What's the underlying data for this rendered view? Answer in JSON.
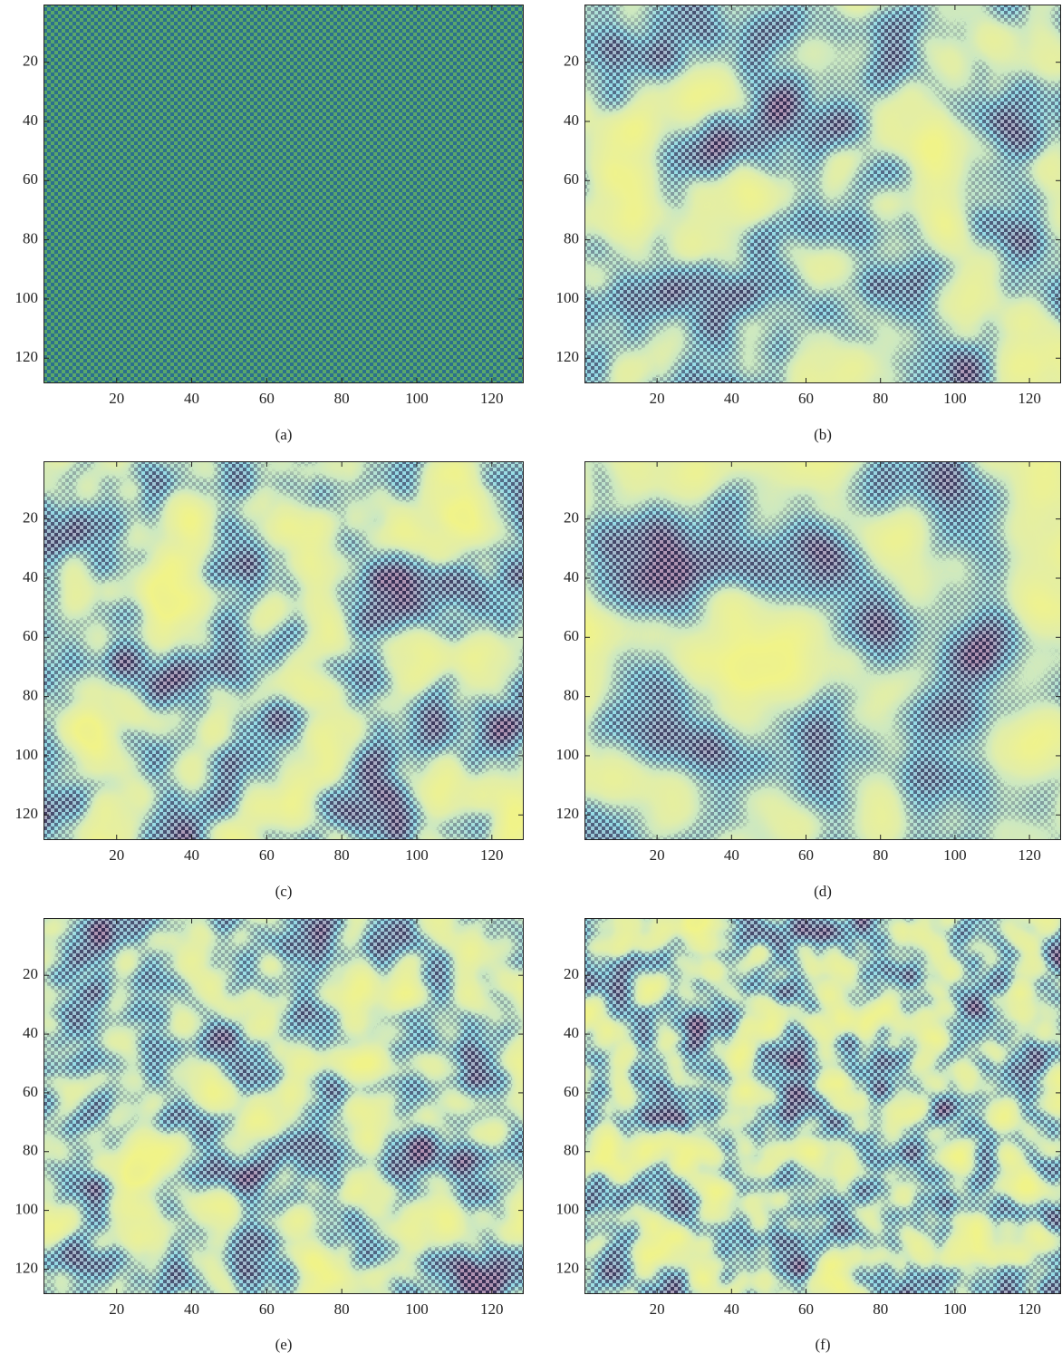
{
  "chart_data": [
    {
      "type": "heatmap",
      "caption": "(a)",
      "xlim": [
        0.5,
        128.5
      ],
      "ylim": [
        128.5,
        0.5
      ],
      "xticks": [
        20,
        40,
        60,
        80,
        100,
        120
      ],
      "yticks": [
        20,
        40,
        60,
        80,
        100,
        120
      ]
    },
    {
      "type": "heatmap",
      "caption": "(b)",
      "xlim": [
        0.5,
        128.5
      ],
      "ylim": [
        128.5,
        0.5
      ],
      "xticks": [
        20,
        40,
        60,
        80,
        100,
        120
      ],
      "yticks": [
        20,
        40,
        60,
        80,
        100,
        120
      ]
    },
    {
      "type": "heatmap",
      "caption": "(c)",
      "xlim": [
        0.5,
        128.5
      ],
      "ylim": [
        128.5,
        0.5
      ],
      "xticks": [
        20,
        40,
        60,
        80,
        100,
        120
      ],
      "yticks": [
        20,
        40,
        60,
        80,
        100,
        120
      ]
    },
    {
      "type": "heatmap",
      "caption": "(d)",
      "xlim": [
        0.5,
        128.5
      ],
      "ylim": [
        128.5,
        0.5
      ],
      "xticks": [
        20,
        40,
        60,
        80,
        100,
        120
      ],
      "yticks": [
        20,
        40,
        60,
        80,
        100,
        120
      ]
    },
    {
      "type": "heatmap",
      "caption": "(e)",
      "xlim": [
        0.5,
        128.5
      ],
      "ylim": [
        128.5,
        0.5
      ],
      "xticks": [
        20,
        40,
        60,
        80,
        100,
        120
      ],
      "yticks": [
        20,
        40,
        60,
        80,
        100,
        120
      ]
    },
    {
      "type": "heatmap",
      "caption": "(f)",
      "xlim": [
        0.5,
        128.5
      ],
      "ylim": [
        128.5,
        0.5
      ],
      "xticks": [
        20,
        40,
        60,
        80,
        100,
        120
      ],
      "yticks": [
        20,
        40,
        60,
        80,
        100,
        120
      ]
    }
  ]
}
